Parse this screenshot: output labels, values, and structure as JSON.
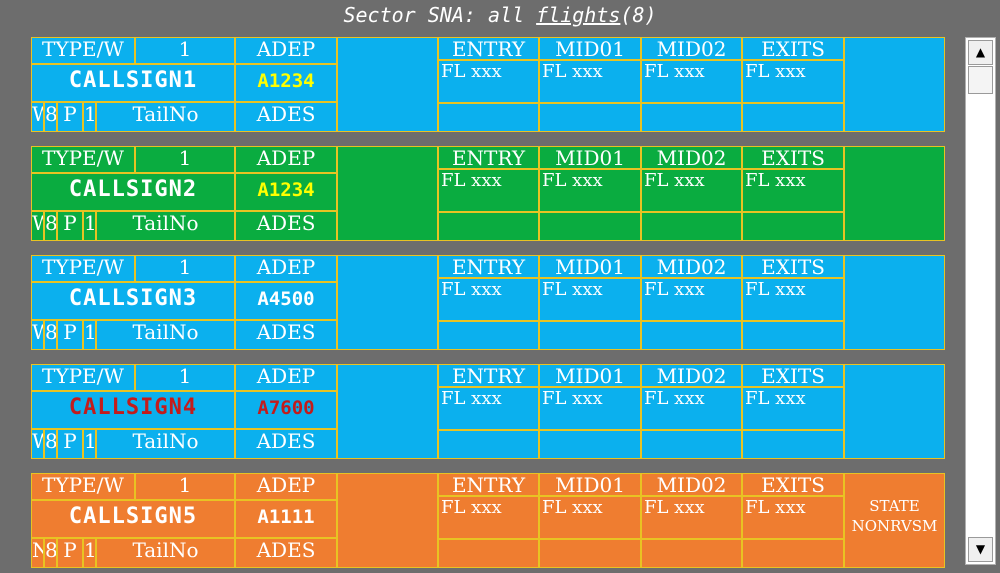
{
  "title": {
    "pre": "Sector SNA: all ",
    "underlined": "flights",
    "post": "(8)"
  },
  "colors": {
    "blue": "#0bb0ee",
    "green": "#0aac40",
    "orange": "#ef7d30",
    "border": "#e8c323",
    "white": "#ffffff",
    "yellow": "#ffff00",
    "red": "#c31c1c"
  },
  "strips": [
    {
      "bg": "#0bb0ee",
      "type": "TYPE/W",
      "num": "1",
      "adep": "ADEP",
      "callsign": "CALLSIGN1",
      "callsign_color": "#ffffff",
      "code": "A1234",
      "code_color": "#ffff00",
      "w": "W",
      "d8": "8",
      "p": "P",
      "d1": "1",
      "tail": "TailNo",
      "ades": "ADES",
      "h_entry": "ENTRY",
      "h_mid01": "MID01",
      "h_mid02": "MID02",
      "h_exits": "EXITS",
      "fl_entry": "FL xxx",
      "fl_mid01": "FL xxx",
      "fl_mid02": "FL xxx",
      "fl_exits": "FL xxx",
      "state": ""
    },
    {
      "bg": "#0aac40",
      "type": "TYPE/W",
      "num": "1",
      "adep": "ADEP",
      "callsign": "CALLSIGN2",
      "callsign_color": "#ffffff",
      "code": "A1234",
      "code_color": "#ffff00",
      "w": "W",
      "d8": "8",
      "p": "P",
      "d1": "1",
      "tail": "TailNo",
      "ades": "ADES",
      "h_entry": "ENTRY",
      "h_mid01": "MID01",
      "h_mid02": "MID02",
      "h_exits": "EXITS",
      "fl_entry": "FL xxx",
      "fl_mid01": "FL xxx",
      "fl_mid02": "FL xxx",
      "fl_exits": "FL xxx",
      "state": ""
    },
    {
      "bg": "#0bb0ee",
      "type": "TYPE/W",
      "num": "1",
      "adep": "ADEP",
      "callsign": "CALLSIGN3",
      "callsign_color": "#ffffff",
      "code": "A4500",
      "code_color": "#ffffff",
      "w": "W",
      "d8": "8",
      "p": "P",
      "d1": "1",
      "tail": "TailNo",
      "ades": "ADES",
      "h_entry": "ENTRY",
      "h_mid01": "MID01",
      "h_mid02": "MID02",
      "h_exits": "EXITS",
      "fl_entry": "FL xxx",
      "fl_mid01": "FL xxx",
      "fl_mid02": "FL xxx",
      "fl_exits": "FL xxx",
      "state": ""
    },
    {
      "bg": "#0bb0ee",
      "type": "TYPE/W",
      "num": "1",
      "adep": "ADEP",
      "callsign": "CALLSIGN4",
      "callsign_color": "#c31c1c",
      "code": "A7600",
      "code_color": "#c31c1c",
      "w": "W",
      "d8": "8",
      "p": "P",
      "d1": "1",
      "tail": "TailNo",
      "ades": "ADES",
      "h_entry": "ENTRY",
      "h_mid01": "MID01",
      "h_mid02": "MID02",
      "h_exits": "EXITS",
      "fl_entry": "FL xxx",
      "fl_mid01": "FL xxx",
      "fl_mid02": "FL xxx",
      "fl_exits": "FL xxx",
      "state": ""
    },
    {
      "bg": "#ef7d30",
      "type": "TYPE/W",
      "num": "1",
      "adep": "ADEP",
      "callsign": "CALLSIGN5",
      "callsign_color": "#ffffff",
      "code": "A1111",
      "code_color": "#ffffff",
      "w": "N",
      "d8": "8",
      "p": "P",
      "d1": "1",
      "tail": "TailNo",
      "ades": "ADES",
      "h_entry": "ENTRY",
      "h_mid01": "MID01",
      "h_mid02": "MID02",
      "h_exits": "EXITS",
      "fl_entry": "FL xxx",
      "fl_mid01": "FL xxx",
      "fl_mid02": "FL xxx",
      "fl_exits": "FL xxx",
      "state": "STATE\nNONRVSM"
    }
  ],
  "scrollbar": {
    "up_icon": "arrow-up-icon",
    "up_glyph": "▲",
    "down_icon": "arrow-down-icon",
    "down_glyph": "▼"
  }
}
